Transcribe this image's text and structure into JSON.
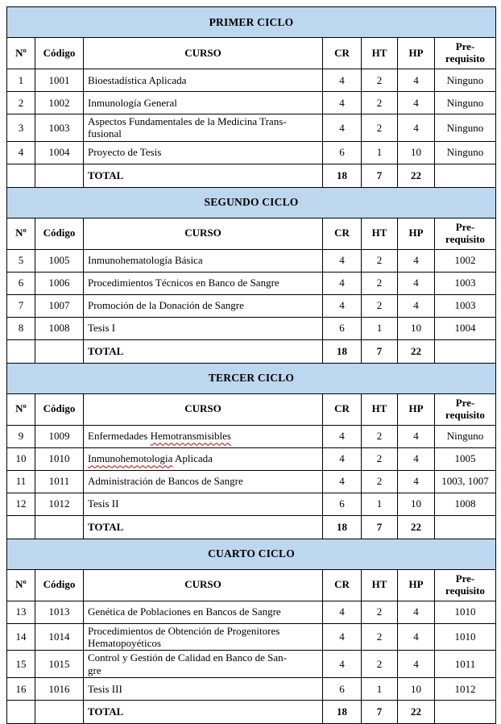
{
  "colors": {
    "section_band_bg": "#BDD7EE",
    "table_border": "#000000",
    "spellcheck_underline": "#C00000"
  },
  "table_headers": {
    "n": "Nº",
    "codigo": "Código",
    "curso": "CURSO",
    "cr": "CR",
    "ht": "HT",
    "hp": "HP",
    "pre": "Pre-requisito"
  },
  "sections": [
    {
      "title": "PRIMER CICLO",
      "courses": [
        {
          "n": "1",
          "codigo": "1001",
          "curso": "Bioestadística Aplicada",
          "cr": "4",
          "ht": "2",
          "hp": "4",
          "pre": "Ninguno"
        },
        {
          "n": "2",
          "codigo": "1002",
          "curso": "Inmunología General",
          "cr": "4",
          "ht": "2",
          "hp": "4",
          "pre": "Ninguno"
        },
        {
          "n": "3",
          "codigo": "1003",
          "curso": [
            "Aspectos Fundamentales de la Medicina Trans-",
            "fusional"
          ],
          "cr": "4",
          "ht": "2",
          "hp": "4",
          "pre": "Ninguno"
        },
        {
          "n": "4",
          "codigo": "1004",
          "curso": "Proyecto de Tesis",
          "cr": "6",
          "ht": "1",
          "hp": "10",
          "pre": "Ninguno"
        }
      ],
      "total": {
        "label": "TOTAL",
        "cr": "18",
        "ht": "7",
        "hp": "22"
      }
    },
    {
      "title": "SEGUNDO CICLO",
      "courses": [
        {
          "n": "5",
          "codigo": "1005",
          "curso": "Inmunohematología Básica",
          "cr": "4",
          "ht": "2",
          "hp": "4",
          "pre": "1002"
        },
        {
          "n": "6",
          "codigo": "1006",
          "curso": "Procedimientos Técnicos en Banco de Sangre",
          "cr": "4",
          "ht": "2",
          "hp": "4",
          "pre": "1003"
        },
        {
          "n": "7",
          "codigo": "1007",
          "curso": "Promoción de la Donación de Sangre",
          "cr": "4",
          "ht": "2",
          "hp": "4",
          "pre": "1003"
        },
        {
          "n": "8",
          "codigo": "1008",
          "curso": "Tesis I",
          "cr": "6",
          "ht": "1",
          "hp": "10",
          "pre": "1004"
        }
      ],
      "total": {
        "label": "TOTAL",
        "cr": "18",
        "ht": "7",
        "hp": "22"
      }
    },
    {
      "title": "TERCER CICLO",
      "courses": [
        {
          "n": "9",
          "codigo": "1009",
          "curso": "Enfermedades Hemotransmisibles",
          "misspelled": "Hemotransmisibles",
          "cr": "4",
          "ht": "2",
          "hp": "4",
          "pre": "Ninguno"
        },
        {
          "n": "10",
          "codigo": "1010",
          "curso": "Inmunohemotologia Aplicada",
          "misspelled": "Inmunohemotologia",
          "cr": "4",
          "ht": "2",
          "hp": "4",
          "pre": "1005"
        },
        {
          "n": "11",
          "codigo": "1011",
          "curso": "Administración de Bancos de Sangre",
          "cr": "4",
          "ht": "2",
          "hp": "4",
          "pre": "1003, 1007"
        },
        {
          "n": "12",
          "codigo": "1012",
          "curso": "Tesis II",
          "cr": "6",
          "ht": "1",
          "hp": "10",
          "pre": "1008"
        }
      ],
      "total": {
        "label": "TOTAL",
        "cr": "18",
        "ht": "7",
        "hp": "22"
      }
    },
    {
      "title": "CUARTO CICLO",
      "courses": [
        {
          "n": "13",
          "codigo": "1013",
          "curso": "Genética de Poblaciones en Bancos de Sangre",
          "cr": "4",
          "ht": "2",
          "hp": "4",
          "pre": "1010"
        },
        {
          "n": "14",
          "codigo": "1014",
          "curso": [
            "Procedimientos de Obtención de Progenitores",
            "Hematopoyéticos"
          ],
          "cr": "4",
          "ht": "2",
          "hp": "4",
          "pre": "1010"
        },
        {
          "n": "15",
          "codigo": "1015",
          "curso": [
            "Control y Gestión de Calidad en Banco de San-",
            "gre"
          ],
          "cr": "4",
          "ht": "2",
          "hp": "4",
          "pre": "1011"
        },
        {
          "n": "16",
          "codigo": "1016",
          "curso": "Tesis III",
          "cr": "6",
          "ht": "1",
          "hp": "10",
          "pre": "1012"
        }
      ],
      "total": {
        "label": "TOTAL",
        "cr": "18",
        "ht": "7",
        "hp": "22"
      }
    }
  ]
}
